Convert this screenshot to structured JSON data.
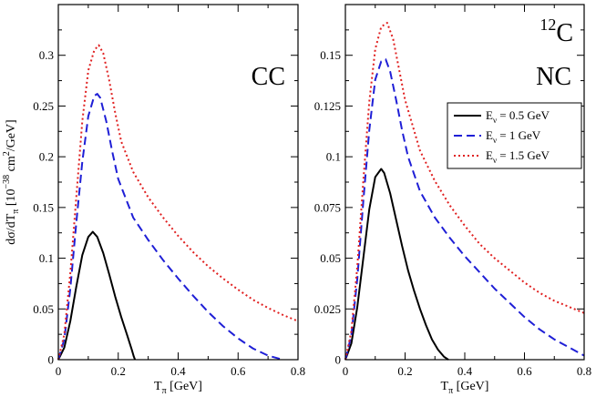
{
  "chart_data": [
    {
      "type": "line",
      "panel_label": "CC",
      "xlabel": {
        "main": "T",
        "sub": "π",
        "unit": " [GeV]"
      },
      "ylabel": {
        "prefix": "dσ/dT",
        "sub": "π",
        "mid": "  [10",
        "exp1": "−38",
        "cm": " cm",
        "exp2": "2",
        "unit": "/GeV]"
      },
      "xlim": [
        0,
        0.8
      ],
      "ylim": [
        0,
        0.35
      ],
      "xticks": [
        0,
        0.2,
        0.4,
        0.6,
        0.8
      ],
      "xtick_labels": [
        "0",
        "0.2",
        "0.4",
        "0.6",
        "0.8"
      ],
      "yticks": [
        0,
        0.05,
        0.1,
        0.15,
        0.2,
        0.25,
        0.3
      ],
      "ytick_labels": [
        "0",
        "0.05",
        "0.1",
        "0.15",
        "0.2",
        "0.25",
        "0.3"
      ],
      "series": [
        {
          "name": "E_ν = 0.5 GeV",
          "style": "solid",
          "color": "#000000",
          "x": [
            0,
            0.02,
            0.04,
            0.06,
            0.08,
            0.1,
            0.115,
            0.13,
            0.15,
            0.17,
            0.19,
            0.21,
            0.23,
            0.245,
            0.252,
            0.256
          ],
          "y": [
            0,
            0.012,
            0.038,
            0.072,
            0.103,
            0.121,
            0.126,
            0.121,
            0.105,
            0.084,
            0.062,
            0.042,
            0.024,
            0.01,
            0.003,
            0
          ]
        },
        {
          "name": "E_ν = 1 GeV",
          "style": "dashed",
          "color": "#1f1fd6",
          "x": [
            0,
            0.02,
            0.04,
            0.06,
            0.08,
            0.1,
            0.12,
            0.13,
            0.14,
            0.16,
            0.18,
            0.2,
            0.25,
            0.3,
            0.35,
            0.4,
            0.45,
            0.5,
            0.55,
            0.6,
            0.65,
            0.7,
            0.75
          ],
          "y": [
            0,
            0.02,
            0.07,
            0.135,
            0.195,
            0.24,
            0.26,
            0.262,
            0.258,
            0.235,
            0.205,
            0.178,
            0.14,
            0.118,
            0.098,
            0.08,
            0.063,
            0.047,
            0.033,
            0.021,
            0.011,
            0.004,
            0
          ]
        },
        {
          "name": "E_ν = 1.5 GeV",
          "style": "dotted",
          "color": "#e02020",
          "x": [
            0,
            0.02,
            0.04,
            0.06,
            0.08,
            0.1,
            0.12,
            0.135,
            0.15,
            0.17,
            0.19,
            0.21,
            0.25,
            0.3,
            0.35,
            0.4,
            0.45,
            0.5,
            0.55,
            0.6,
            0.65,
            0.7,
            0.75,
            0.8
          ],
          "y": [
            0,
            0.025,
            0.085,
            0.16,
            0.235,
            0.285,
            0.305,
            0.31,
            0.302,
            0.275,
            0.243,
            0.215,
            0.185,
            0.16,
            0.14,
            0.122,
            0.106,
            0.092,
            0.08,
            0.069,
            0.059,
            0.051,
            0.044,
            0.038
          ]
        }
      ]
    },
    {
      "type": "line",
      "panel_label": "NC",
      "nucleus": {
        "mass_number": "12",
        "symbol": "C"
      },
      "xlabel": {
        "main": "T",
        "sub": "π",
        "unit": " [GeV]"
      },
      "xlim": [
        0,
        0.8
      ],
      "ylim": [
        0,
        0.175
      ],
      "xticks": [
        0,
        0.2,
        0.4,
        0.6,
        0.8
      ],
      "xtick_labels": [
        "0",
        "0.2",
        "0.4",
        "0.6",
        "0.8"
      ],
      "yticks": [
        0,
        0.025,
        0.05,
        0.075,
        0.1,
        0.125,
        0.15
      ],
      "ytick_labels": [
        "0",
        "0.025",
        "0.05",
        "0.075",
        "0.1",
        "0.125",
        "0.15"
      ],
      "legend": {
        "position": "right",
        "entries": [
          {
            "main": "E",
            "sub": "ν",
            "rest": " = 0.5 GeV",
            "style": "solid",
            "color": "#000000"
          },
          {
            "main": "E",
            "sub": "ν",
            "rest": " = 1 GeV",
            "style": "dashed",
            "color": "#1f1fd6"
          },
          {
            "main": "E",
            "sub": "ν",
            "rest": " = 1.5 GeV",
            "style": "dotted",
            "color": "#e02020"
          }
        ]
      },
      "series": [
        {
          "name": "E_ν = 0.5 GeV",
          "style": "solid",
          "color": "#000000",
          "x": [
            0,
            0.02,
            0.04,
            0.06,
            0.08,
            0.1,
            0.12,
            0.13,
            0.15,
            0.17,
            0.19,
            0.21,
            0.23,
            0.25,
            0.27,
            0.29,
            0.31,
            0.33,
            0.345
          ],
          "y": [
            0,
            0.008,
            0.026,
            0.05,
            0.074,
            0.09,
            0.094,
            0.092,
            0.082,
            0.069,
            0.056,
            0.044,
            0.034,
            0.025,
            0.017,
            0.01,
            0.005,
            0.0015,
            0
          ]
        },
        {
          "name": "E_ν = 1 GeV",
          "style": "dashed",
          "color": "#1f1fd6",
          "x": [
            0,
            0.02,
            0.04,
            0.06,
            0.08,
            0.1,
            0.12,
            0.135,
            0.15,
            0.17,
            0.19,
            0.21,
            0.25,
            0.3,
            0.35,
            0.4,
            0.45,
            0.5,
            0.55,
            0.6,
            0.65,
            0.7,
            0.75,
            0.8
          ],
          "y": [
            0,
            0.012,
            0.04,
            0.078,
            0.113,
            0.138,
            0.147,
            0.148,
            0.142,
            0.128,
            0.113,
            0.1,
            0.083,
            0.07,
            0.06,
            0.051,
            0.043,
            0.035,
            0.028,
            0.021,
            0.015,
            0.01,
            0.006,
            0.002
          ]
        },
        {
          "name": "E_ν = 1.5 GeV",
          "style": "dotted",
          "color": "#e02020",
          "x": [
            0,
            0.02,
            0.04,
            0.06,
            0.08,
            0.1,
            0.12,
            0.14,
            0.16,
            0.18,
            0.2,
            0.25,
            0.3,
            0.35,
            0.4,
            0.45,
            0.5,
            0.55,
            0.6,
            0.65,
            0.7,
            0.75,
            0.8
          ],
          "y": [
            0,
            0.014,
            0.046,
            0.088,
            0.127,
            0.153,
            0.164,
            0.166,
            0.158,
            0.143,
            0.128,
            0.103,
            0.088,
            0.076,
            0.066,
            0.057,
            0.05,
            0.044,
            0.038,
            0.033,
            0.029,
            0.026,
            0.023
          ]
        }
      ]
    }
  ]
}
